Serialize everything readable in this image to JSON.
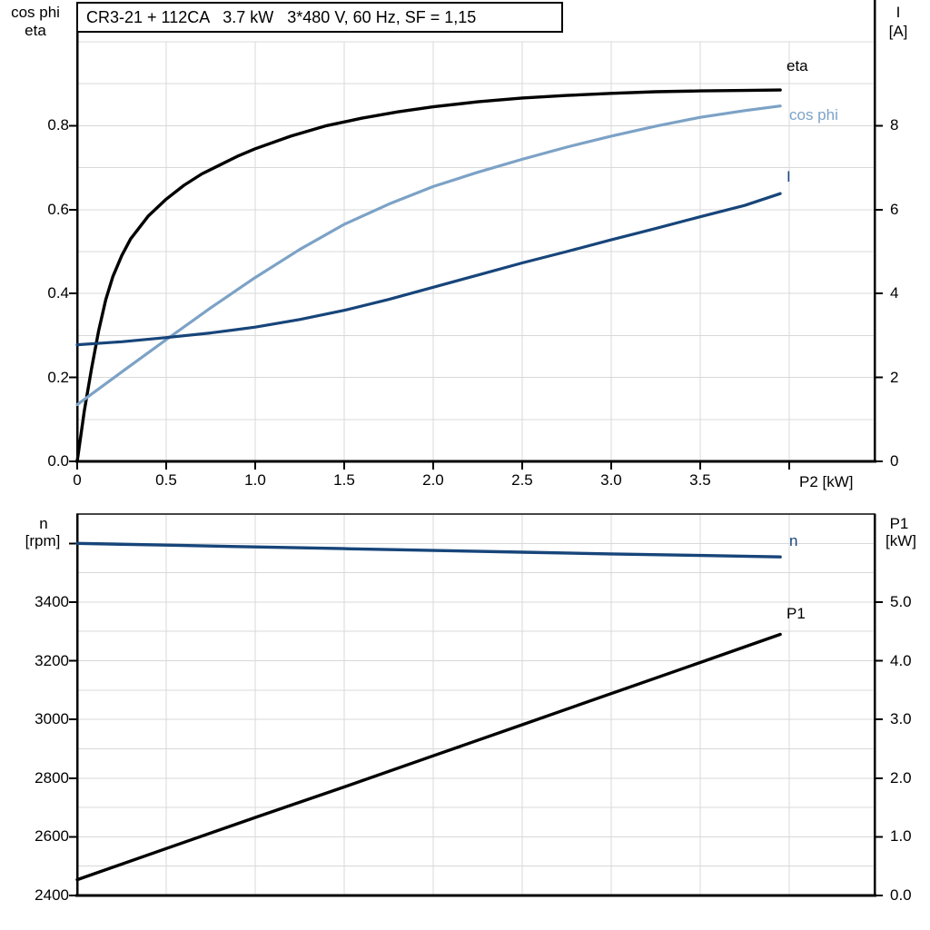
{
  "title": "CR3-21 + 112CA   3.7 kW   3*480 V, 60 Hz, SF = 1,15",
  "axis_titles": {
    "top_left_line1": "cos phi",
    "top_left_line2": "eta",
    "top_right_line1": "I",
    "top_right_line2": "[A]",
    "x_axis": "P2 [kW]",
    "bottom_left_line1": "n",
    "bottom_left_line2": "[rpm]",
    "bottom_right_line1": "P1",
    "bottom_right_line2": "[kW]"
  },
  "curve_labels": {
    "eta": "eta",
    "cos_phi": "cos phi",
    "current": "I",
    "speed": "n",
    "power_in": "P1"
  },
  "colors": {
    "curve_black": "#000000",
    "curve_light_blue": "#7ca2c6",
    "curve_dark_blue": "#17457a",
    "gridline": "#d8d8d8",
    "frame": "#000000",
    "bottom_chart_top_border": "#454545",
    "background": "#ffffff",
    "text": "#000000"
  },
  "chart_data": [
    {
      "type": "line",
      "title": "CR3-21 + 112CA   3.7 kW   3*480 V, 60 Hz, SF = 1,15",
      "xlabel": "P2 [kW]",
      "xlim": [
        0,
        4.48
      ],
      "x_gridlines": [
        0.5,
        1.0,
        1.5,
        2.0,
        2.5,
        3.0,
        3.5,
        4.0
      ],
      "x_tick_values": [
        0,
        0.5,
        1.0,
        1.5,
        2.0,
        2.5,
        3.0,
        3.5,
        4.0
      ],
      "x_tick_labels": [
        "0",
        "0.5",
        "1.0",
        "1.5",
        "2.0",
        "2.5",
        "3.0",
        "3.5",
        ""
      ],
      "left_axis": {
        "label": "cos phi / eta",
        "lim": [
          0,
          1.0
        ],
        "gridlines": [
          0.1,
          0.2,
          0.3,
          0.4,
          0.5,
          0.6,
          0.7,
          0.8,
          0.9,
          1.0
        ],
        "tick_values": [
          0,
          0.2,
          0.4,
          0.6,
          0.8
        ],
        "tick_labels": [
          "0.0",
          "0.2",
          "0.4",
          "0.6",
          "0.8"
        ]
      },
      "right_axis": {
        "label": "I [A]",
        "lim": [
          0,
          10
        ],
        "tick_values": [
          0,
          2,
          4,
          6,
          8
        ],
        "tick_labels": [
          "0",
          "2",
          "4",
          "6",
          "8"
        ]
      },
      "series": [
        {
          "name": "eta",
          "axis": "left",
          "color_key": "curve_black",
          "width": 3.4,
          "points": [
            [
              0,
              0
            ],
            [
              0.04,
              0.12
            ],
            [
              0.08,
              0.22
            ],
            [
              0.12,
              0.31
            ],
            [
              0.16,
              0.385
            ],
            [
              0.2,
              0.44
            ],
            [
              0.25,
              0.49
            ],
            [
              0.3,
              0.53
            ],
            [
              0.4,
              0.585
            ],
            [
              0.5,
              0.625
            ],
            [
              0.6,
              0.658
            ],
            [
              0.7,
              0.685
            ],
            [
              0.8,
              0.706
            ],
            [
              0.9,
              0.727
            ],
            [
              1.0,
              0.745
            ],
            [
              1.2,
              0.775
            ],
            [
              1.4,
              0.8
            ],
            [
              1.6,
              0.818
            ],
            [
              1.8,
              0.833
            ],
            [
              2.0,
              0.845
            ],
            [
              2.25,
              0.857
            ],
            [
              2.5,
              0.866
            ],
            [
              2.75,
              0.872
            ],
            [
              3.0,
              0.877
            ],
            [
              3.25,
              0.881
            ],
            [
              3.5,
              0.883
            ],
            [
              3.75,
              0.884
            ],
            [
              3.95,
              0.885
            ]
          ]
        },
        {
          "name": "cos phi",
          "axis": "left",
          "color_key": "curve_light_blue",
          "width": 3.2,
          "points": [
            [
              0,
              0.135
            ],
            [
              0.25,
              0.213
            ],
            [
              0.5,
              0.29
            ],
            [
              0.75,
              0.366
            ],
            [
              1.0,
              0.438
            ],
            [
              1.25,
              0.505
            ],
            [
              1.5,
              0.565
            ],
            [
              1.75,
              0.613
            ],
            [
              2.0,
              0.655
            ],
            [
              2.25,
              0.689
            ],
            [
              2.5,
              0.72
            ],
            [
              2.75,
              0.749
            ],
            [
              3.0,
              0.775
            ],
            [
              3.25,
              0.799
            ],
            [
              3.5,
              0.82
            ],
            [
              3.75,
              0.836
            ],
            [
              3.95,
              0.847
            ]
          ]
        },
        {
          "name": "I",
          "axis": "right",
          "color_key": "curve_dark_blue",
          "width": 3.2,
          "points": [
            [
              0,
              2.78
            ],
            [
              0.25,
              2.85
            ],
            [
              0.5,
              2.95
            ],
            [
              0.75,
              3.06
            ],
            [
              1.0,
              3.2
            ],
            [
              1.25,
              3.38
            ],
            [
              1.5,
              3.6
            ],
            [
              1.75,
              3.86
            ],
            [
              2.0,
              4.15
            ],
            [
              2.25,
              4.44
            ],
            [
              2.5,
              4.73
            ],
            [
              2.75,
              5.0
            ],
            [
              3.0,
              5.28
            ],
            [
              3.25,
              5.55
            ],
            [
              3.5,
              5.83
            ],
            [
              3.75,
              6.1
            ],
            [
              3.95,
              6.38
            ]
          ]
        }
      ]
    },
    {
      "type": "line",
      "xlabel": "",
      "xlim": [
        0,
        4.48
      ],
      "x_gridlines": [
        0.5,
        1.0,
        1.5,
        2.0,
        2.5,
        3.0,
        3.5,
        4.0
      ],
      "x_tick_values": [],
      "x_tick_labels": [],
      "left_axis": {
        "label": "n [rpm]",
        "lim": [
          2400,
          3700
        ],
        "gridlines": [
          2500,
          2600,
          2700,
          2800,
          2900,
          3000,
          3100,
          3200,
          3300,
          3400,
          3500,
          3600
        ],
        "tick_values": [
          2400,
          2600,
          2800,
          3000,
          3200,
          3400,
          3600
        ],
        "tick_labels": [
          "2400",
          "2600",
          "2800",
          "3000",
          "3200",
          "3400",
          ""
        ]
      },
      "right_axis": {
        "label": "P1 [kW]",
        "lim": [
          0,
          6.5
        ],
        "tick_values": [
          0,
          1,
          2,
          3,
          4,
          5
        ],
        "tick_labels": [
          "0.0",
          "1.0",
          "2.0",
          "3.0",
          "4.0",
          "5.0"
        ]
      },
      "series": [
        {
          "name": "n",
          "axis": "left",
          "color_key": "curve_dark_blue",
          "width": 3.4,
          "points": [
            [
              0,
              3600
            ],
            [
              0.5,
              3594
            ],
            [
              1.0,
              3588
            ],
            [
              1.5,
              3582
            ],
            [
              2.0,
              3576
            ],
            [
              2.5,
              3570
            ],
            [
              3.0,
              3564
            ],
            [
              3.5,
              3559
            ],
            [
              3.95,
              3554
            ]
          ]
        },
        {
          "name": "P1",
          "axis": "right",
          "color_key": "curve_black",
          "width": 3.4,
          "points": [
            [
              0,
              0.27
            ],
            [
              0.5,
              0.8
            ],
            [
              1.0,
              1.33
            ],
            [
              1.5,
              1.85
            ],
            [
              2.0,
              2.38
            ],
            [
              2.5,
              2.91
            ],
            [
              3.0,
              3.44
            ],
            [
              3.5,
              3.97
            ],
            [
              3.95,
              4.45
            ]
          ]
        }
      ]
    }
  ]
}
